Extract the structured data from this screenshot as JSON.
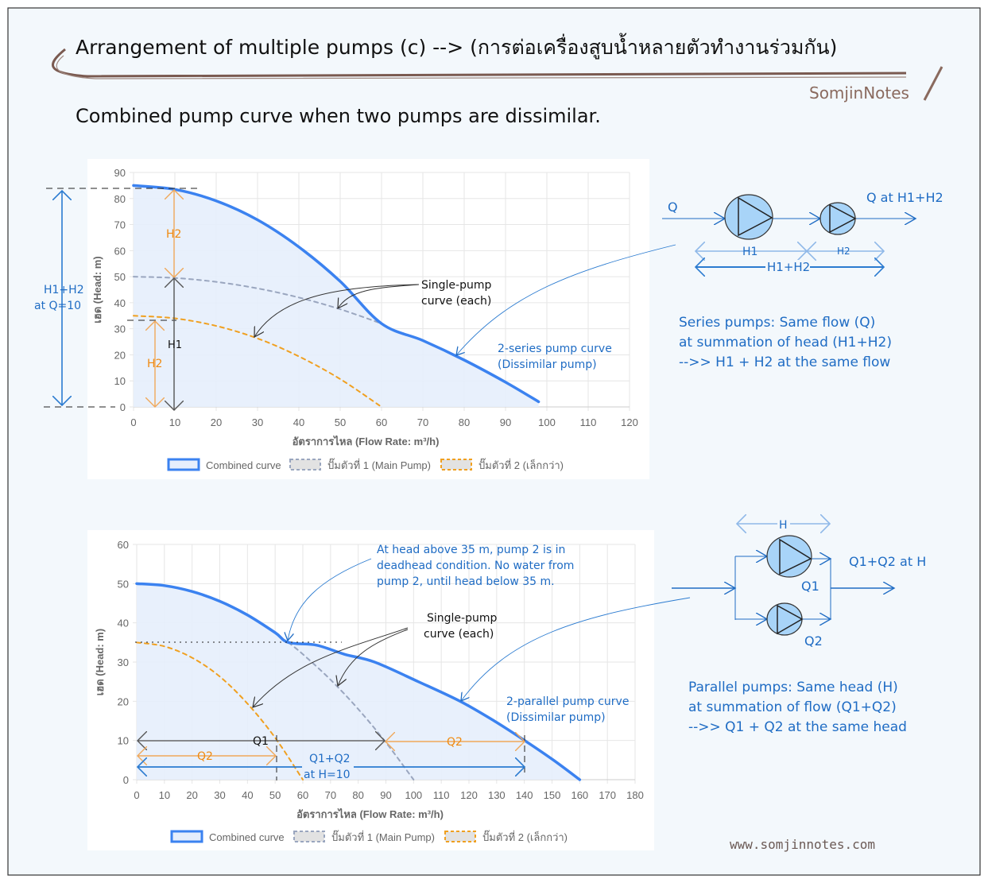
{
  "header": {
    "title": "Arrangement of multiple pumps (c) --> (การต่อเครื่องสูบน้ำหลายตัวทำงานร่วมกัน)",
    "subtitle": "Combined pump curve when two pumps are dissimilar.",
    "brand": "SomjinNotes",
    "website": "www.somjinnotes.com"
  },
  "colors": {
    "background": "#f3f8fc",
    "combined": "#3b82f0",
    "combined_fill": "#e6eefc",
    "pump1": "#9aa6bf",
    "pump2": "#f0a020",
    "annotation_blue": "#1f6cc4",
    "brand_brown": "#8a6a5e",
    "pump_fill": "#a8d4f8"
  },
  "chart_data": [
    {
      "type": "line",
      "title": "",
      "xlabel": "อัตราการไหล (Flow Rate: m³/h)",
      "ylabel": "เฮด (Head: m)",
      "xlim": [
        0,
        120
      ],
      "ylim": [
        0,
        90
      ],
      "xticks": [
        "0",
        "10",
        "20",
        "30",
        "40",
        "50",
        "60",
        "70",
        "80",
        "90",
        "100",
        "110",
        "120"
      ],
      "yticks": [
        "0",
        "10",
        "20",
        "30",
        "40",
        "50",
        "60",
        "70",
        "80",
        "90"
      ],
      "grid": true,
      "legend_placement": "bottom",
      "legend": [
        "Combined curve",
        "ปั๊มตัวที่ 1 (Main Pump)",
        "ปั๊มตัวที่ 2 (เล็กกว่า)"
      ],
      "series": [
        {
          "name": "Combined curve",
          "style": "solid-filled",
          "x": [
            0,
            10,
            20,
            30,
            40,
            50,
            60,
            70,
            80,
            90,
            98
          ],
          "y": [
            85,
            83.5,
            79.1,
            71.8,
            61.4,
            48.2,
            32,
            25.5,
            18,
            9.5,
            2
          ]
        },
        {
          "name": "ปั๊มตัวที่ 1 (Main Pump)",
          "style": "dashed",
          "x": [
            0,
            10,
            20,
            30,
            40,
            50,
            60
          ],
          "y": [
            50,
            49.5,
            48,
            45.5,
            42,
            37.5,
            32
          ]
        },
        {
          "name": "ปั๊มตัวที่ 2 (เล็กกว่า)",
          "style": "dashed",
          "x": [
            0,
            10,
            20,
            30,
            40,
            50,
            60
          ],
          "y": [
            35,
            34,
            31.1,
            26.3,
            19.4,
            10.7,
            0
          ]
        }
      ],
      "annotations": {
        "h1h2": "H1+H2",
        "h1h2_at": "at Q=10",
        "h2_upper": "H2",
        "h1": "H1",
        "h2_lower": "H2",
        "single_1": "Single-pump",
        "single_2": "curve (each)",
        "curve_1": "2-series pump curve",
        "curve_2": "(Dissimilar pump)"
      }
    },
    {
      "type": "line",
      "title": "",
      "xlabel": "อัตราการไหล (Flow Rate: m³/h)",
      "ylabel": "เฮด (Head: m)",
      "xlim": [
        0,
        180
      ],
      "ylim": [
        0,
        60
      ],
      "xticks": [
        "0",
        "10",
        "20",
        "30",
        "40",
        "50",
        "60",
        "70",
        "80",
        "90",
        "100",
        "110",
        "120",
        "130",
        "140",
        "150",
        "160",
        "170",
        "180"
      ],
      "yticks": [
        "0",
        "10",
        "20",
        "30",
        "40",
        "50",
        "60"
      ],
      "grid": true,
      "legend_placement": "bottom",
      "legend": [
        "Combined curve",
        "ปั๊มตัวที่ 1 (Main Pump)",
        "ปั๊มตัวที่ 2 (เล็กกว่า)"
      ],
      "series": [
        {
          "name": "Combined curve",
          "style": "solid-filled",
          "x": [
            0,
            10,
            20,
            30,
            40,
            50,
            54.8,
            65,
            75,
            85.9,
            101.7,
            116.8,
            129.1,
            140.1,
            150.5,
            160
          ],
          "y": [
            50,
            49.5,
            48,
            45.5,
            42,
            37.5,
            35,
            34.3,
            32,
            30,
            25,
            20,
            15,
            10,
            5,
            0
          ]
        },
        {
          "name": "ปั๊มตัวที่ 1 (Main Pump)",
          "style": "dashed",
          "x": [
            54.8,
            60,
            70,
            80,
            90,
            100
          ],
          "y": [
            35,
            32,
            25.5,
            18,
            9.5,
            0
          ]
        },
        {
          "name": "ปั๊มตัวที่ 2 (เล็กกว่า)",
          "style": "dashed",
          "x": [
            0,
            10,
            20,
            30,
            40,
            50,
            60
          ],
          "y": [
            35,
            34,
            31.1,
            26.3,
            19.4,
            10.7,
            0
          ]
        }
      ],
      "annotations": {
        "deadhead_1": "At head above 35 m, pump 2 is in",
        "deadhead_2": "deadhead condition. No water from",
        "deadhead_3": "pump 2, until head below 35 m.",
        "single_1": "Single-pump",
        "single_2": "curve (each)",
        "curve_1": "2-parallel pump curve",
        "curve_2": "(Dissimilar pump)",
        "q1": "Q1",
        "q2_right": "Q2",
        "q2_left": "Q2",
        "q1q2": "Q1+Q2",
        "q1q2_at": "at H=10"
      }
    }
  ],
  "series_diagram": {
    "q_in": "Q",
    "q_out": "Q at H1+H2",
    "h1": "H1",
    "h2": "H2",
    "h1h2": "H1+H2",
    "text": [
      "Series pumps: Same flow (Q)",
      "at summation of head (H1+H2)",
      "-->> H1 + H2 at the same flow"
    ]
  },
  "parallel_diagram": {
    "h": "H",
    "out": "Q1+Q2 at H",
    "q1": "Q1",
    "q2": "Q2",
    "text": [
      "Parallel pumps: Same head (H)",
      "at summation of flow (Q1+Q2)",
      "-->> Q1 + Q2 at the same head"
    ]
  }
}
